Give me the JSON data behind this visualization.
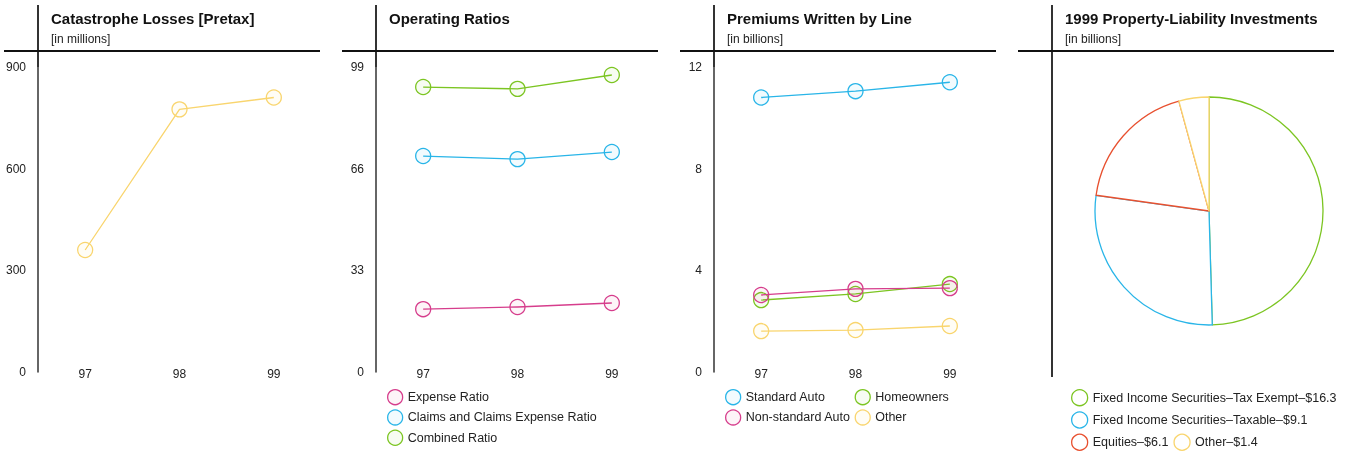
{
  "chart_data": [
    {
      "type": "line",
      "title": "Catastrophe Losses [Pretax]",
      "subtitle": "[in millions]",
      "categories": [
        "97",
        "98",
        "99"
      ],
      "ylim": [
        0,
        900
      ],
      "yticks": [
        0,
        300,
        600,
        900
      ],
      "marker": "circle",
      "series": [
        {
          "color": "#f9d56e",
          "values": [
            360,
            775,
            810
          ]
        }
      ]
    },
    {
      "type": "line",
      "title": "Operating Ratios",
      "categories": [
        "97",
        "98",
        "99"
      ],
      "ylim": [
        0,
        99
      ],
      "yticks": [
        0,
        33,
        66,
        99
      ],
      "marker": "circle",
      "legend": "bottom",
      "series": [
        {
          "name": "Expense Ratio",
          "color": "#d63d8c",
          "values": [
            20.4,
            21.1,
            22.4
          ]
        },
        {
          "name": "Claims and Claims Expense Ratio",
          "color": "#29b5e8",
          "values": [
            70.1,
            69.1,
            71.4
          ]
        },
        {
          "name": "Combined Ratio",
          "color": "#7cc522",
          "values": [
            92.5,
            91.9,
            96.4
          ]
        }
      ]
    },
    {
      "type": "line",
      "title": "Premiums Written by Line",
      "subtitle": "[in billions]",
      "categories": [
        "97",
        "98",
        "99"
      ],
      "ylim": [
        0,
        12
      ],
      "yticks": [
        0,
        4,
        8,
        12
      ],
      "marker": "circle",
      "legend": "bottom",
      "series": [
        {
          "name": "Standard Auto",
          "color": "#29b5e8",
          "values": [
            10.8,
            11.05,
            11.4
          ]
        },
        {
          "name": "Non-standard Auto",
          "color": "#d63d8c",
          "values": [
            3.03,
            3.27,
            3.3
          ]
        },
        {
          "name": "Homeowners",
          "color": "#7cc522",
          "values": [
            2.83,
            3.07,
            3.46
          ]
        },
        {
          "name": "Other",
          "color": "#f9d56e",
          "values": [
            1.61,
            1.65,
            1.81
          ]
        }
      ]
    },
    {
      "type": "pie",
      "title": "1999 Property-Liability Investments",
      "subtitle": "[in billions]",
      "legend": "bottom",
      "categories": [
        "Fixed Income Securities–Tax Exempt",
        "Fixed Income Securities–Taxable",
        "Equities",
        "Other"
      ],
      "values": [
        16.3,
        9.1,
        6.1,
        1.4
      ],
      "value_labels": [
        "$16.3",
        "$9.1",
        "$6.1",
        "$1.4"
      ],
      "colors": [
        "#7cc522",
        "#29b5e8",
        "#e8502f",
        "#f9d56e"
      ]
    }
  ]
}
